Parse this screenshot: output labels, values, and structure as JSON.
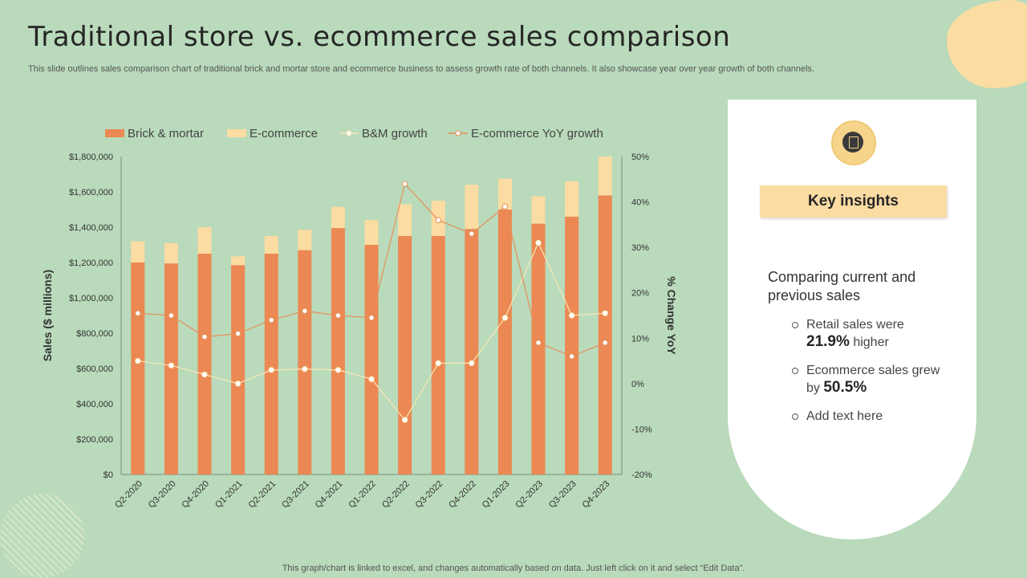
{
  "title": "Traditional store vs. ecommerce sales comparison",
  "subtitle": "This slide outlines sales comparison chart of traditional brick and mortar store and ecommerce business to assess growth rate of both channels. It also showcase year over year growth of both channels.",
  "footer": "This graph/chart is linked to excel, and changes automatically based on data. Just left click on it and select “Edit Data”.",
  "insights": {
    "title": "Key insights",
    "heading": "Comparing current and previous sales",
    "b1_pre": "Retail sales were",
    "b1_val": "21.9%",
    "b1_post": "higher",
    "b2_pre": "Ecommerce sales grew by",
    "b2_val": "50.5%",
    "b3": "Add text here",
    "icon": "document-icon"
  },
  "colors": {
    "brick": "#ec8853",
    "ecom": "#fbdca2",
    "bm_growth_line": "#f7e7b4",
    "ecom_growth_line": "#e58f58",
    "background": "#b9dabb"
  },
  "chart_data": {
    "type": "bar",
    "stacked": true,
    "categories": [
      "Q2-2020",
      "Q3-2020",
      "Q4-2020",
      "Q1-2021",
      "Q2-2021",
      "Q3-2021",
      "Q4-2021",
      "Q1-2022",
      "Q2-2022",
      "Q3-2022",
      "Q4-2022",
      "Q1-2023",
      "Q2-2023",
      "Q3-2023",
      "Q4-2023"
    ],
    "series": [
      {
        "name": "Brick & mortar",
        "kind": "bar",
        "axis": "left",
        "values": [
          1200000,
          1195000,
          1250000,
          1185000,
          1250000,
          1270000,
          1395000,
          1300000,
          1350000,
          1350000,
          1390000,
          1500000,
          1420000,
          1460000,
          1580000
        ]
      },
      {
        "name": "E-commerce",
        "kind": "bar",
        "axis": "left",
        "values": [
          120000,
          115000,
          150000,
          50000,
          100000,
          115000,
          120000,
          140000,
          180000,
          200000,
          250000,
          175000,
          155000,
          200000,
          220000
        ]
      },
      {
        "name": "B&M growth",
        "kind": "line",
        "axis": "right",
        "values": [
          5,
          4,
          2,
          0,
          3,
          3.2,
          3,
          1,
          -8,
          4.5,
          4.5,
          14.5,
          31,
          15,
          15.5
        ]
      },
      {
        "name": "E-commerce YoY growth",
        "kind": "line",
        "axis": "right",
        "values": [
          15.5,
          15,
          10.3,
          11,
          14,
          16,
          15,
          14.5,
          44,
          36,
          33,
          39,
          9,
          6,
          9
        ]
      }
    ],
    "legend": [
      "Brick & mortar",
      "E-commerce",
      "B&M growth",
      "E-commerce YoY growth"
    ],
    "legend_position": "top",
    "ylabel": "Sales ($ millions)",
    "y2label": "% Change YoY",
    "ylim": [
      0,
      1800000
    ],
    "y2lim": [
      -20,
      50
    ],
    "yticks": [
      "$0",
      "$200,000",
      "$400,000",
      "$600,000",
      "$800,000",
      "$1,000,000",
      "$1,200,000",
      "$1,400,000",
      "$1,600,000",
      "$1,800,000"
    ],
    "y2ticks": [
      "-20%",
      "-10%",
      "0%",
      "10%",
      "20%",
      "30%",
      "40%",
      "50%"
    ],
    "grid": false
  }
}
